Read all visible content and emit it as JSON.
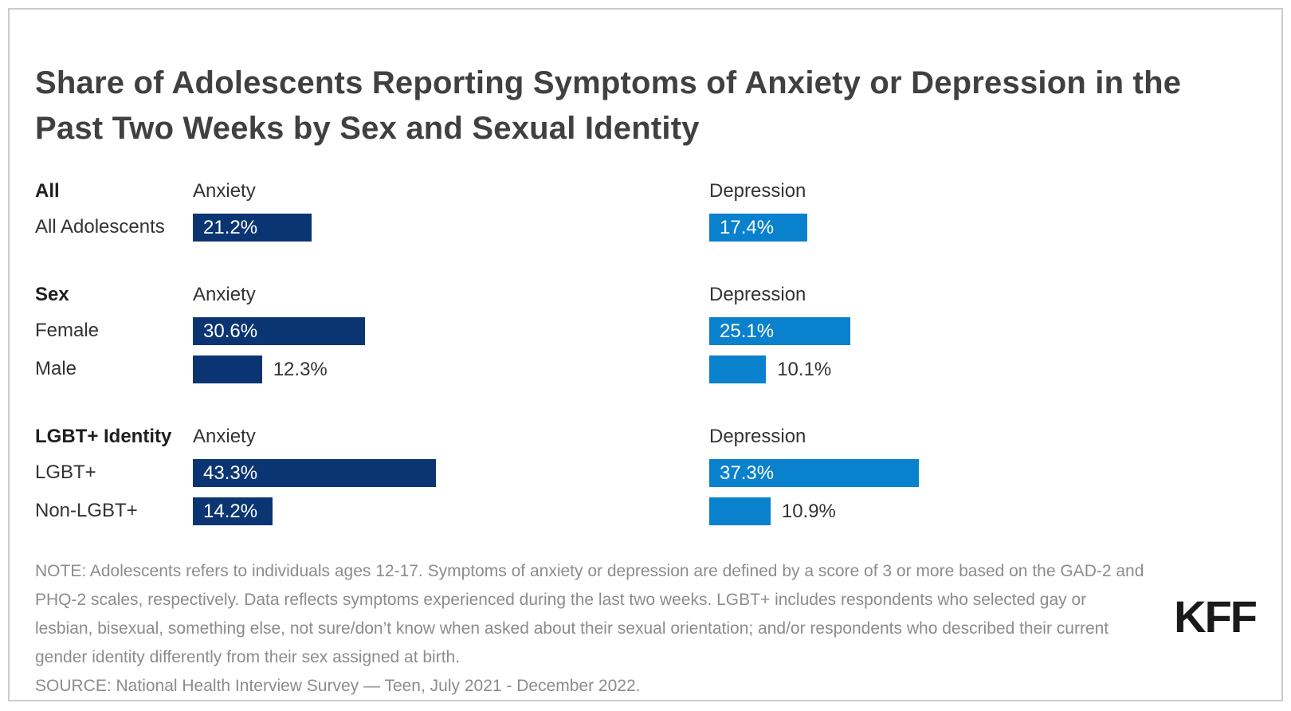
{
  "title": "Share of Adolescents Reporting Symptoms of Anxiety or Depression in the Past Two Weeks by Sex and Sexual Identity",
  "columns": {
    "anxiety": "Anxiety",
    "depression": "Depression"
  },
  "sections": [
    {
      "header": "All",
      "rows": [
        {
          "label": "All Adolescents",
          "anxiety": 21.2,
          "depression": 17.4
        }
      ]
    },
    {
      "header": "Sex",
      "rows": [
        {
          "label": "Female",
          "anxiety": 30.6,
          "depression": 25.1
        },
        {
          "label": "Male",
          "anxiety": 12.3,
          "depression": 10.1
        }
      ]
    },
    {
      "header": "LGBT+ Identity",
      "rows": [
        {
          "label": "LGBT+",
          "anxiety": 43.3,
          "depression": 37.3
        },
        {
          "label": "Non-LGBT+",
          "anxiety": 14.2,
          "depression": 10.9
        }
      ]
    }
  ],
  "note": "NOTE: Adolescents refers to individuals ages 12-17. Symptoms of anxiety or depression are defined by a score of 3 or more based on the GAD-2 and PHQ-2 scales, respectively. Data reflects symptoms experienced during the last two weeks. LGBT+ includes respondents who selected gay or lesbian, bisexual, something else, not sure/don’t know when asked about their sexual orientation; and/or respondents who described their current gender identity differently from their sex assigned at birth.",
  "source": "SOURCE: National Health Interview Survey — Teen, July 2021 - December 2022.",
  "logo": "KFF",
  "colors": {
    "anxiety": "#0b3572",
    "depression": "#0981cd"
  },
  "chart_data": {
    "type": "bar",
    "orientation": "horizontal",
    "title": "Share of Adolescents Reporting Symptoms of Anxiety or Depression in the Past Two Weeks by Sex and Sexual Identity",
    "section_groups": [
      {
        "section": "All",
        "categories": [
          "All Adolescents"
        ]
      },
      {
        "section": "Sex",
        "categories": [
          "Female",
          "Male"
        ]
      },
      {
        "section": "LGBT+ Identity",
        "categories": [
          "LGBT+",
          "Non-LGBT+"
        ]
      }
    ],
    "categories": [
      "All Adolescents",
      "Female",
      "Male",
      "LGBT+",
      "Non-LGBT+"
    ],
    "series": [
      {
        "name": "Anxiety",
        "color": "#0b3572",
        "values": [
          21.2,
          30.6,
          12.3,
          43.3,
          14.2
        ]
      },
      {
        "name": "Depression",
        "color": "#0981cd",
        "values": [
          17.4,
          25.1,
          10.1,
          37.3,
          10.9
        ]
      }
    ],
    "unit": "%",
    "xlim": [
      0,
      50
    ],
    "grid": false,
    "legend_position": "column-headers",
    "data_labels": true
  }
}
